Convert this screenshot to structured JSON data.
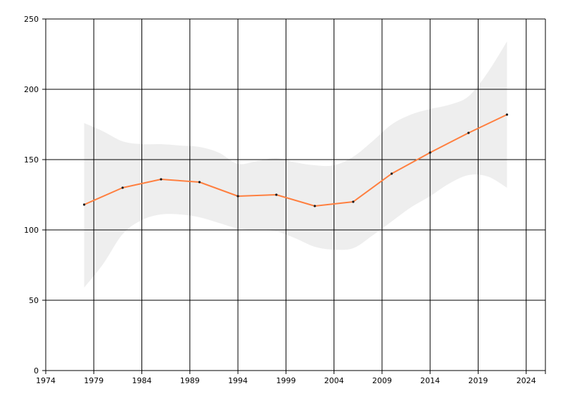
{
  "chart_data": {
    "type": "line",
    "title": "",
    "xlabel": "",
    "ylabel": "",
    "xlim": [
      1974,
      2026
    ],
    "ylim": [
      0,
      250
    ],
    "x_ticks": [
      1974,
      1979,
      1984,
      1989,
      1994,
      1999,
      2004,
      2009,
      2014,
      2019,
      2024
    ],
    "y_ticks": [
      0,
      50,
      100,
      150,
      200,
      250
    ],
    "grid": true,
    "legend": "none",
    "colors": {
      "line": "#ff7f3f",
      "marker": "#1a1a1a",
      "band": "#eeeeee",
      "grid": "#000000"
    },
    "series": [
      {
        "x": [
          1978,
          1982,
          1986,
          1990,
          1994,
          1998,
          2002,
          2006,
          2010,
          2014,
          2018,
          2022
        ],
        "y": [
          118,
          130,
          136,
          134,
          124,
          125,
          117,
          120,
          140,
          155,
          169,
          182
        ]
      }
    ],
    "band": {
      "x": [
        1978,
        1980,
        1982,
        1984,
        1986,
        1988,
        1990,
        1992,
        1994,
        1996,
        1998,
        2000,
        2002,
        2004,
        2006,
        2008,
        2010,
        2012,
        2014,
        2016,
        2018,
        2020,
        2022
      ],
      "upper": [
        176,
        170,
        163,
        161,
        161,
        160,
        159,
        155,
        147,
        149,
        151,
        148,
        146,
        146,
        152,
        163,
        175,
        182,
        186,
        189,
        195,
        212,
        234
      ],
      "lower": [
        59,
        76,
        97,
        107,
        111,
        111,
        109,
        105,
        101,
        100,
        99,
        94,
        88,
        86,
        87,
        96,
        106,
        116,
        124,
        133,
        139,
        138,
        130
      ]
    }
  }
}
